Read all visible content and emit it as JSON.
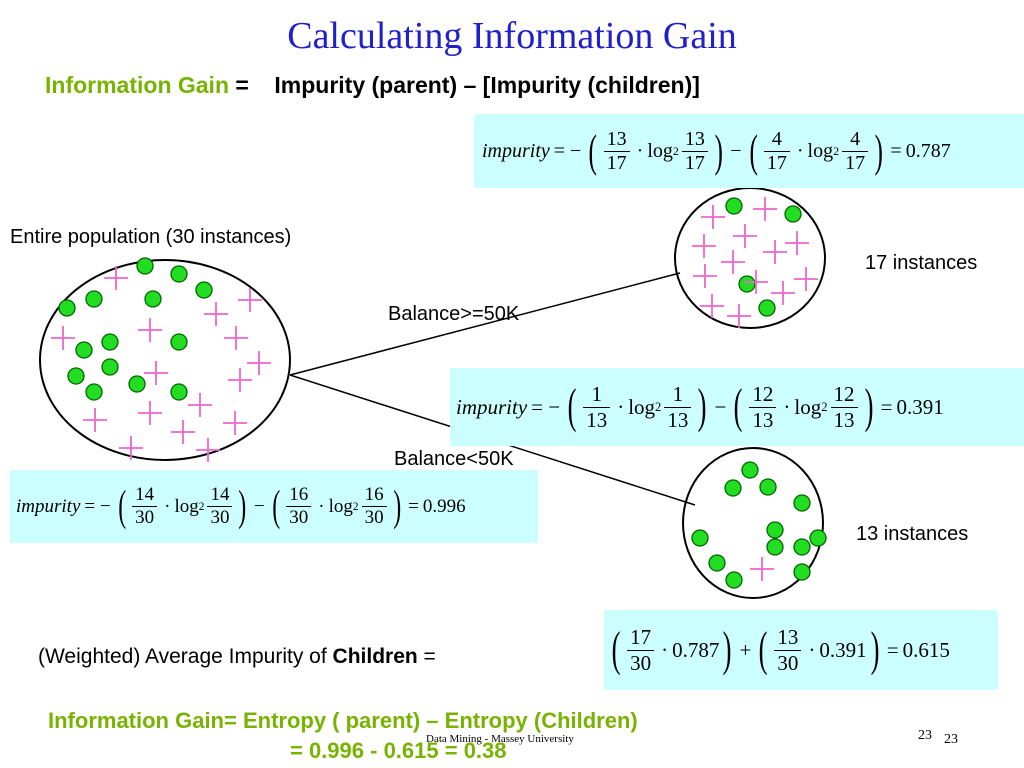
{
  "title": "Calculating Information Gain",
  "subtitle": {
    "highlight": "Information Gain",
    "rest": " =    Impurity (parent) – [Impurity (children)]"
  },
  "formulas": {
    "top_child": {
      "lhs": "impurity",
      "a_num": "13",
      "a_den": "17",
      "b_num": "4",
      "b_den": "17",
      "result": "0.787"
    },
    "bottom_child": {
      "lhs": "impurity",
      "a_num": "1",
      "a_den": "13",
      "b_num": "12",
      "b_den": "13",
      "result": "0.391"
    },
    "parent": {
      "lhs": "impurity",
      "a_num": "14",
      "a_den": "30",
      "b_num": "16",
      "b_den": "30",
      "result": "0.996"
    },
    "weighted": {
      "a_num": "17",
      "a_den": "30",
      "a_val": "0.787",
      "b_num": "13",
      "b_den": "30",
      "b_val": "0.391",
      "result": "0.615"
    },
    "log": "log",
    "log_base": "2",
    "eq_minus": "= −",
    "minus": "−",
    "dot": "·",
    "plus": "+",
    "eq": "="
  },
  "labels": {
    "entire_population": "Entire population (30 instances)",
    "balance_ge": "Balance>=50K",
    "balance_lt": "Balance<50K",
    "instances_17": "17 instances",
    "instances_13": "13 instances",
    "weighted_prefix": "(Weighted) Average Impurity of ",
    "weighted_bold": "Children",
    "weighted_suffix": " ="
  },
  "bottom": {
    "line1": "Information Gain= Entropy ( parent) – Entropy (Children)",
    "line2": "= 0.996 - 0.615 = 0.38"
  },
  "footer": {
    "text": "Data Mining - Massey University",
    "page_a": "23",
    "page_b": "23"
  },
  "colors": {
    "title": "#1f1fcc",
    "highlight": "#77b300",
    "formula_bg": "#ccffff",
    "dot_fill": "#22dd22",
    "dot_stroke": "#006600",
    "cross": "#ee66cc"
  },
  "counts": {
    "parent": {
      "dots": 14,
      "crosses": 16
    },
    "top_child": {
      "dots": 4,
      "crosses": 13
    },
    "bottom_child": {
      "dots": 12,
      "crosses": 1
    }
  }
}
